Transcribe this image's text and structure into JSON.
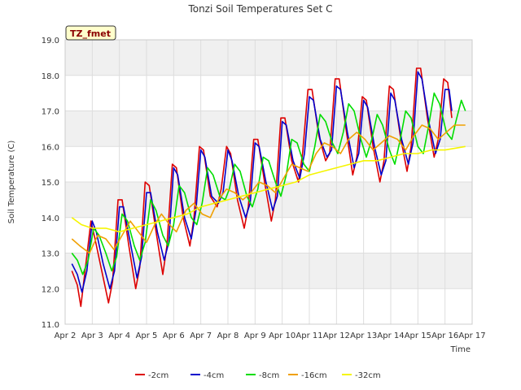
{
  "chart_data": {
    "type": "line",
    "title": "Tonzi Soil Temperatures Set C",
    "xlabel": "Time",
    "ylabel": "Soil Temperature (C)",
    "badge": "TZ_fmet",
    "x_ticks": [
      "Apr 2",
      "Apr 3",
      "Apr 4",
      "Apr 5",
      "Apr 6",
      "Apr 7",
      "Apr 8",
      "Apr 9",
      "Apr 10",
      "Apr 11",
      "Apr 12",
      "Apr 13",
      "Apr 14",
      "Apr 15",
      "Apr 16",
      "Apr 17"
    ],
    "y_ticks": [
      "11.0",
      "12.0",
      "13.0",
      "14.0",
      "15.0",
      "16.0",
      "17.0",
      "18.0",
      "19.0"
    ],
    "xlim": [
      0,
      15
    ],
    "ylim": [
      11.0,
      19.0
    ],
    "grid": true,
    "legend_position": "bottom",
    "background_bands": "alternating light gray horizontal bands",
    "series": [
      {
        "name": "-2cm",
        "color": "#dd0000",
        "points": [
          [
            0.25,
            12.5
          ],
          [
            0.45,
            12.1
          ],
          [
            0.58,
            11.5
          ],
          [
            0.75,
            12.6
          ],
          [
            0.95,
            13.9
          ],
          [
            1.1,
            13.4
          ],
          [
            1.35,
            12.5
          ],
          [
            1.6,
            11.6
          ],
          [
            1.75,
            12.2
          ],
          [
            1.95,
            14.5
          ],
          [
            2.1,
            14.5
          ],
          [
            2.35,
            13.2
          ],
          [
            2.6,
            12.0
          ],
          [
            2.75,
            12.6
          ],
          [
            2.95,
            15.0
          ],
          [
            3.1,
            14.9
          ],
          [
            3.35,
            13.6
          ],
          [
            3.6,
            12.4
          ],
          [
            3.75,
            13.2
          ],
          [
            3.95,
            15.5
          ],
          [
            4.1,
            15.4
          ],
          [
            4.35,
            14.0
          ],
          [
            4.6,
            13.2
          ],
          [
            4.75,
            14.0
          ],
          [
            4.95,
            16.0
          ],
          [
            5.1,
            15.9
          ],
          [
            5.35,
            14.6
          ],
          [
            5.6,
            14.3
          ],
          [
            5.75,
            14.8
          ],
          [
            5.95,
            16.0
          ],
          [
            6.1,
            15.8
          ],
          [
            6.35,
            14.5
          ],
          [
            6.6,
            13.7
          ],
          [
            6.75,
            14.3
          ],
          [
            6.95,
            16.2
          ],
          [
            7.1,
            16.2
          ],
          [
            7.35,
            15.0
          ],
          [
            7.6,
            13.9
          ],
          [
            7.75,
            14.5
          ],
          [
            7.95,
            16.8
          ],
          [
            8.1,
            16.8
          ],
          [
            8.35,
            15.6
          ],
          [
            8.6,
            15.0
          ],
          [
            8.75,
            15.8
          ],
          [
            8.95,
            17.6
          ],
          [
            9.1,
            17.6
          ],
          [
            9.35,
            16.3
          ],
          [
            9.6,
            15.6
          ],
          [
            9.75,
            15.8
          ],
          [
            9.95,
            17.9
          ],
          [
            10.1,
            17.9
          ],
          [
            10.35,
            16.5
          ],
          [
            10.6,
            15.2
          ],
          [
            10.75,
            15.7
          ],
          [
            10.95,
            17.4
          ],
          [
            11.1,
            17.3
          ],
          [
            11.35,
            16.0
          ],
          [
            11.6,
            15.0
          ],
          [
            11.75,
            15.6
          ],
          [
            11.95,
            17.7
          ],
          [
            12.1,
            17.6
          ],
          [
            12.35,
            16.3
          ],
          [
            12.6,
            15.3
          ],
          [
            12.75,
            16.0
          ],
          [
            12.95,
            18.2
          ],
          [
            13.1,
            18.2
          ],
          [
            13.35,
            16.8
          ],
          [
            13.6,
            15.7
          ],
          [
            13.75,
            16.2
          ],
          [
            13.95,
            17.9
          ],
          [
            14.1,
            17.8
          ],
          [
            14.25,
            16.8
          ]
        ]
      },
      {
        "name": "-4cm",
        "color": "#0000cc",
        "points": [
          [
            0.25,
            12.7
          ],
          [
            0.45,
            12.4
          ],
          [
            0.62,
            11.9
          ],
          [
            0.8,
            12.5
          ],
          [
            1.0,
            13.9
          ],
          [
            1.15,
            13.6
          ],
          [
            1.4,
            12.7
          ],
          [
            1.65,
            12.0
          ],
          [
            1.82,
            12.5
          ],
          [
            2.0,
            14.3
          ],
          [
            2.15,
            14.3
          ],
          [
            2.4,
            13.3
          ],
          [
            2.65,
            12.3
          ],
          [
            2.82,
            12.9
          ],
          [
            3.0,
            14.7
          ],
          [
            3.15,
            14.7
          ],
          [
            3.4,
            13.6
          ],
          [
            3.65,
            12.8
          ],
          [
            3.82,
            13.3
          ],
          [
            4.0,
            15.4
          ],
          [
            4.15,
            15.2
          ],
          [
            4.4,
            14.0
          ],
          [
            4.65,
            13.4
          ],
          [
            4.82,
            14.2
          ],
          [
            5.0,
            15.9
          ],
          [
            5.15,
            15.7
          ],
          [
            5.4,
            14.6
          ],
          [
            5.65,
            14.4
          ],
          [
            5.82,
            14.7
          ],
          [
            6.0,
            15.9
          ],
          [
            6.15,
            15.6
          ],
          [
            6.4,
            14.6
          ],
          [
            6.65,
            14.0
          ],
          [
            6.82,
            14.4
          ],
          [
            7.0,
            16.1
          ],
          [
            7.15,
            16.0
          ],
          [
            7.4,
            15.0
          ],
          [
            7.65,
            14.2
          ],
          [
            7.82,
            14.6
          ],
          [
            8.0,
            16.7
          ],
          [
            8.15,
            16.6
          ],
          [
            8.4,
            15.6
          ],
          [
            8.65,
            15.1
          ],
          [
            8.82,
            15.8
          ],
          [
            9.0,
            17.4
          ],
          [
            9.15,
            17.3
          ],
          [
            9.4,
            16.2
          ],
          [
            9.65,
            15.7
          ],
          [
            9.82,
            15.9
          ],
          [
            10.0,
            17.7
          ],
          [
            10.15,
            17.6
          ],
          [
            10.4,
            16.4
          ],
          [
            10.65,
            15.4
          ],
          [
            10.82,
            15.8
          ],
          [
            11.0,
            17.3
          ],
          [
            11.15,
            17.1
          ],
          [
            11.4,
            16.0
          ],
          [
            11.65,
            15.2
          ],
          [
            11.82,
            15.6
          ],
          [
            12.0,
            17.5
          ],
          [
            12.15,
            17.3
          ],
          [
            12.4,
            16.2
          ],
          [
            12.65,
            15.5
          ],
          [
            12.82,
            16.1
          ],
          [
            13.0,
            18.1
          ],
          [
            13.15,
            17.9
          ],
          [
            13.4,
            16.7
          ],
          [
            13.65,
            15.8
          ],
          [
            13.82,
            16.2
          ],
          [
            14.0,
            17.6
          ],
          [
            14.15,
            17.6
          ],
          [
            14.25,
            17.0
          ]
        ]
      },
      {
        "name": "-8cm",
        "color": "#00dd00",
        "points": [
          [
            0.25,
            13.0
          ],
          [
            0.45,
            12.8
          ],
          [
            0.65,
            12.4
          ],
          [
            0.85,
            12.8
          ],
          [
            1.05,
            13.7
          ],
          [
            1.25,
            13.5
          ],
          [
            1.5,
            13.0
          ],
          [
            1.72,
            12.5
          ],
          [
            1.9,
            12.9
          ],
          [
            2.1,
            14.1
          ],
          [
            2.3,
            13.9
          ],
          [
            2.55,
            13.2
          ],
          [
            2.75,
            12.8
          ],
          [
            2.95,
            13.3
          ],
          [
            3.15,
            14.5
          ],
          [
            3.35,
            14.2
          ],
          [
            3.6,
            13.5
          ],
          [
            3.8,
            13.2
          ],
          [
            4.0,
            13.8
          ],
          [
            4.2,
            14.9
          ],
          [
            4.4,
            14.7
          ],
          [
            4.65,
            14.0
          ],
          [
            4.85,
            13.8
          ],
          [
            5.05,
            14.4
          ],
          [
            5.25,
            15.4
          ],
          [
            5.45,
            15.2
          ],
          [
            5.7,
            14.6
          ],
          [
            5.9,
            14.5
          ],
          [
            6.05,
            14.8
          ],
          [
            6.25,
            15.5
          ],
          [
            6.45,
            15.3
          ],
          [
            6.7,
            14.6
          ],
          [
            6.9,
            14.3
          ],
          [
            7.1,
            14.8
          ],
          [
            7.3,
            15.7
          ],
          [
            7.5,
            15.6
          ],
          [
            7.75,
            15.0
          ],
          [
            7.95,
            14.6
          ],
          [
            8.15,
            15.2
          ],
          [
            8.35,
            16.2
          ],
          [
            8.55,
            16.1
          ],
          [
            8.8,
            15.5
          ],
          [
            9.0,
            15.3
          ],
          [
            9.2,
            16.0
          ],
          [
            9.4,
            16.9
          ],
          [
            9.6,
            16.7
          ],
          [
            9.85,
            16.1
          ],
          [
            10.05,
            15.8
          ],
          [
            10.25,
            16.4
          ],
          [
            10.45,
            17.2
          ],
          [
            10.65,
            17.0
          ],
          [
            10.9,
            16.2
          ],
          [
            11.1,
            15.7
          ],
          [
            11.3,
            16.2
          ],
          [
            11.5,
            16.9
          ],
          [
            11.7,
            16.6
          ],
          [
            11.95,
            15.9
          ],
          [
            12.15,
            15.5
          ],
          [
            12.35,
            16.2
          ],
          [
            12.55,
            17.0
          ],
          [
            12.75,
            16.8
          ],
          [
            13.0,
            16.0
          ],
          [
            13.2,
            15.8
          ],
          [
            13.4,
            16.6
          ],
          [
            13.6,
            17.5
          ],
          [
            13.8,
            17.2
          ],
          [
            14.05,
            16.4
          ],
          [
            14.25,
            16.2
          ],
          [
            14.4,
            16.7
          ],
          [
            14.6,
            17.3
          ],
          [
            14.75,
            17.0
          ]
        ]
      },
      {
        "name": "-16cm",
        "color": "#f0a000",
        "points": [
          [
            0.25,
            13.4
          ],
          [
            0.55,
            13.2
          ],
          [
            0.9,
            13.0
          ],
          [
            1.2,
            13.5
          ],
          [
            1.5,
            13.4
          ],
          [
            1.8,
            13.1
          ],
          [
            2.1,
            13.5
          ],
          [
            2.4,
            13.9
          ],
          [
            2.7,
            13.6
          ],
          [
            3.0,
            13.3
          ],
          [
            3.3,
            13.8
          ],
          [
            3.55,
            14.1
          ],
          [
            3.85,
            13.8
          ],
          [
            4.1,
            13.6
          ],
          [
            4.45,
            14.2
          ],
          [
            4.75,
            14.4
          ],
          [
            5.05,
            14.1
          ],
          [
            5.35,
            14.0
          ],
          [
            5.65,
            14.5
          ],
          [
            5.95,
            14.8
          ],
          [
            6.25,
            14.7
          ],
          [
            6.55,
            14.5
          ],
          [
            6.85,
            14.7
          ],
          [
            7.15,
            15.0
          ],
          [
            7.45,
            14.9
          ],
          [
            7.75,
            14.7
          ],
          [
            8.05,
            15.1
          ],
          [
            8.35,
            15.5
          ],
          [
            8.65,
            15.4
          ],
          [
            8.95,
            15.3
          ],
          [
            9.25,
            15.8
          ],
          [
            9.55,
            16.1
          ],
          [
            9.85,
            16.0
          ],
          [
            10.15,
            15.8
          ],
          [
            10.45,
            16.2
          ],
          [
            10.75,
            16.4
          ],
          [
            11.05,
            16.2
          ],
          [
            11.35,
            15.9
          ],
          [
            11.65,
            16.1
          ],
          [
            11.95,
            16.3
          ],
          [
            12.25,
            16.2
          ],
          [
            12.55,
            15.9
          ],
          [
            12.85,
            16.3
          ],
          [
            13.15,
            16.6
          ],
          [
            13.45,
            16.5
          ],
          [
            13.75,
            16.2
          ],
          [
            14.05,
            16.4
          ],
          [
            14.35,
            16.6
          ],
          [
            14.75,
            16.6
          ]
        ]
      },
      {
        "name": "-32cm",
        "color": "#f5f500",
        "points": [
          [
            0.25,
            14.0
          ],
          [
            0.6,
            13.8
          ],
          [
            1.0,
            13.7
          ],
          [
            1.5,
            13.7
          ],
          [
            2.0,
            13.6
          ],
          [
            2.5,
            13.7
          ],
          [
            3.0,
            13.8
          ],
          [
            3.5,
            13.9
          ],
          [
            4.0,
            14.0
          ],
          [
            4.5,
            14.1
          ],
          [
            5.0,
            14.3
          ],
          [
            5.5,
            14.4
          ],
          [
            6.0,
            14.5
          ],
          [
            6.5,
            14.6
          ],
          [
            7.0,
            14.7
          ],
          [
            7.5,
            14.8
          ],
          [
            8.0,
            14.9
          ],
          [
            8.5,
            15.0
          ],
          [
            9.0,
            15.2
          ],
          [
            9.5,
            15.3
          ],
          [
            10.0,
            15.4
          ],
          [
            10.5,
            15.5
          ],
          [
            11.0,
            15.6
          ],
          [
            11.5,
            15.6
          ],
          [
            12.0,
            15.7
          ],
          [
            12.5,
            15.8
          ],
          [
            13.0,
            15.8
          ],
          [
            13.5,
            15.9
          ],
          [
            14.0,
            15.9
          ],
          [
            14.75,
            16.0
          ]
        ]
      }
    ]
  }
}
